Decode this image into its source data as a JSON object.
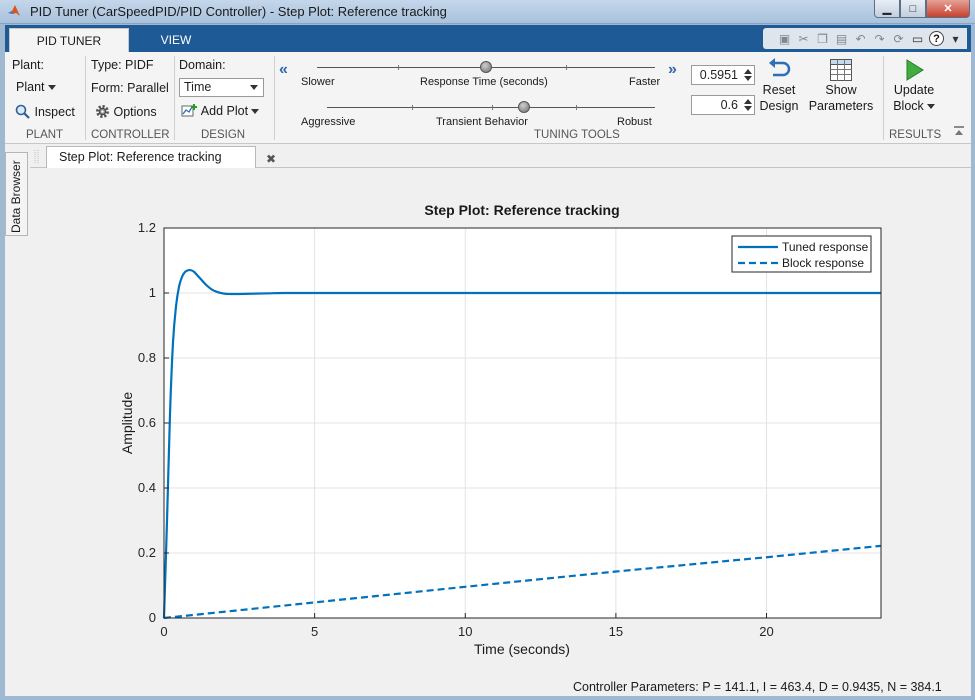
{
  "window": {
    "title": "PID Tuner (CarSpeedPID/PID Controller) - Step Plot: Reference tracking",
    "buttons": [
      "minimize-icon",
      "maximize-icon",
      "close-icon"
    ]
  },
  "tabs": [
    {
      "label": "PID TUNER",
      "active": true
    },
    {
      "label": "VIEW",
      "active": false
    }
  ],
  "quick_access": [
    "save-icon",
    "cut-icon",
    "copy-icon",
    "paste-icon",
    "undo-icon",
    "redo-icon",
    "refresh-icon",
    "window-icon",
    "help-icon",
    "menu-icon"
  ],
  "ribbon": {
    "plant": {
      "label": "Plant:",
      "dropdown": "Plant",
      "inspect": "Inspect",
      "group": "PLANT"
    },
    "controller": {
      "type": "Type: PIDF",
      "form": "Form: Parallel",
      "options": "Options",
      "group": "CONTROLLER"
    },
    "design": {
      "domain_label": "Domain:",
      "domain_value": "Time",
      "add_plot": "Add Plot",
      "group": "DESIGN"
    },
    "tuning": {
      "response_time": {
        "left": "Slower",
        "center": "Response Time (seconds)",
        "right": "Faster",
        "value": "0.5951",
        "position": 0.5
      },
      "transient": {
        "left": "Aggressive",
        "center": "Transient Behavior",
        "right": "Robust",
        "value": "0.6",
        "position": 0.6
      },
      "group": "TUNING TOOLS"
    },
    "reset": {
      "line1": "Reset",
      "line2": "Design"
    },
    "show": {
      "line1": "Show",
      "line2": "Parameters"
    },
    "update": {
      "line1": "Update",
      "line2": "Block",
      "group": "RESULTS"
    }
  },
  "sidebar": {
    "data_browser": "Data Browser"
  },
  "document_tab": {
    "label": "Step Plot: Reference tracking"
  },
  "status": {
    "text": "Controller Parameters: P = 141.1, I = 463.4, D = 0.9435, N = 384.1"
  },
  "colors": {
    "accent": "#1e5a96",
    "series": "#0072bd"
  },
  "chart_data": {
    "type": "line",
    "title": "Step Plot: Reference tracking",
    "xlabel": "Time (seconds)",
    "ylabel": "Amplitude",
    "xlim": [
      0,
      23.8
    ],
    "ylim": [
      0,
      1.2
    ],
    "xticks": [
      0,
      5,
      10,
      15,
      20
    ],
    "yticks": [
      0,
      0.2,
      0.4,
      0.6,
      0.8,
      1,
      1.2
    ],
    "grid": true,
    "legend_position": "top-right",
    "series": [
      {
        "name": "Tuned response",
        "style": "solid",
        "x": [
          0,
          0.1,
          0.2,
          0.3,
          0.4,
          0.5,
          0.6,
          0.7,
          0.8,
          0.9,
          1.0,
          1.1,
          1.2,
          1.4,
          1.6,
          1.8,
          2.0,
          2.2,
          2.5,
          3.0,
          3.5,
          4.0,
          6.0,
          10.0,
          15.0,
          20.0,
          23.8
        ],
        "y": [
          0,
          0.3,
          0.63,
          0.85,
          0.96,
          1.02,
          1.05,
          1.065,
          1.07,
          1.07,
          1.065,
          1.055,
          1.045,
          1.025,
          1.01,
          1.002,
          0.998,
          0.997,
          0.997,
          0.998,
          0.999,
          1.0,
          1.0,
          1.0,
          1.0,
          1.0,
          1.0
        ]
      },
      {
        "name": "Block response",
        "style": "dashed",
        "x": [
          0,
          5,
          10,
          15,
          20,
          23.8
        ],
        "y": [
          0,
          0.048,
          0.096,
          0.143,
          0.187,
          0.222
        ]
      }
    ]
  }
}
